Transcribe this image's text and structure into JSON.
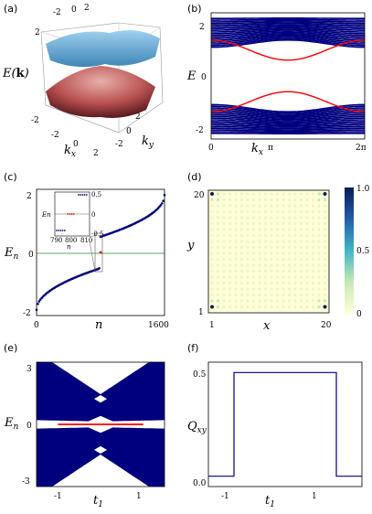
{
  "panels": {
    "a": {
      "label": "(a)",
      "zlabel": "E(k)",
      "xlabel": "kx",
      "ylabel": "ky",
      "xticks": [
        "-2",
        "0",
        "2"
      ],
      "yticks": [
        "-2",
        "0",
        "2"
      ],
      "zticks": [
        "2",
        "0",
        "-2"
      ]
    },
    "b": {
      "label": "(b)",
      "ylabel": "E",
      "xlabel": "kx",
      "xticks": [
        "0",
        "π",
        "2π"
      ],
      "yticks": [
        "2",
        "0",
        "-2"
      ]
    },
    "c": {
      "label": "(c)",
      "ylabel": "En",
      "xlabel": "n",
      "xticks": [
        "0",
        "1600"
      ],
      "yticks": [
        "2",
        "0",
        "-2"
      ],
      "inset": {
        "ylabel": "En",
        "xlabel": "n",
        "xticks": [
          "790",
          "800",
          "810"
        ],
        "yticks": [
          "0.5",
          "0",
          "-0.5"
        ]
      }
    },
    "d": {
      "label": "(d)",
      "ylabel": "y",
      "xlabel": "x",
      "xticks": [
        "1",
        "20"
      ],
      "yticks": [
        "20",
        "1"
      ],
      "colorbar_ticks": [
        "1.0",
        "0.5",
        "0"
      ]
    },
    "e": {
      "label": "(e)",
      "ylabel": "En",
      "xlabel": "t1",
      "xticks": [
        "-1",
        "1"
      ],
      "yticks": [
        "3",
        "0",
        "-3"
      ]
    },
    "f": {
      "label": "(f)",
      "ylabel": "Qxy",
      "xlabel": "t1",
      "xticks": [
        "-1",
        "1"
      ],
      "yticks": [
        "0.5",
        "0.0"
      ]
    }
  },
  "chart_data": [
    {
      "panel": "a",
      "type": "area",
      "description_free": true,
      "x_range": [
        -3.14,
        3.14
      ],
      "y_range": [
        -3.14,
        3.14
      ],
      "z_range": [
        -2,
        2
      ],
      "bands": [
        {
          "name": "upper",
          "color": "#5aa9d6"
        },
        {
          "name": "lower",
          "color": "#b85050"
        }
      ]
    },
    {
      "panel": "b",
      "type": "line",
      "x_range": [
        0,
        6.283
      ],
      "ylim": [
        -2.2,
        2.2
      ],
      "bulk_color": "#00007f",
      "edge_color": "#ff0000",
      "edge_upper_x": [
        0,
        1.57,
        3.14,
        4.71,
        6.28
      ],
      "edge_upper_y": [
        1.25,
        0.95,
        0.55,
        0.95,
        1.25
      ],
      "edge_lower_y": [
        -1.25,
        -0.95,
        -0.55,
        -0.95,
        -1.25
      ]
    },
    {
      "panel": "c",
      "type": "scatter",
      "x_range": [
        0,
        1600
      ],
      "ylim": [
        -2.2,
        2.2
      ],
      "color": "#00007f",
      "zero_line_color": "#2e8b2e",
      "n": [
        0,
        200,
        400,
        600,
        790,
        798,
        802,
        810,
        1000,
        1200,
        1400,
        1600
      ],
      "E": [
        -2.0,
        -1.6,
        -1.2,
        -0.75,
        -0.55,
        0.0,
        0.0,
        0.55,
        0.75,
        1.2,
        1.6,
        2.0
      ],
      "zero_modes": 4
    },
    {
      "panel": "d",
      "type": "heatmap",
      "grid": [
        20,
        20
      ],
      "clim": [
        0,
        1
      ],
      "colormap": [
        "#ffffd9",
        "#c7e9b4",
        "#41b6c4",
        "#225ea8",
        "#081d58"
      ],
      "corner_peaks": [
        [
          1,
          1
        ],
        [
          1,
          20
        ],
        [
          20,
          1
        ],
        [
          20,
          20
        ]
      ],
      "background_value": 0.05
    },
    {
      "panel": "e",
      "type": "area",
      "x_range": [
        -1.5,
        1.5
      ],
      "ylim": [
        -3.3,
        3.3
      ],
      "fill_color": "#00007f",
      "edge_color": "#ff0000",
      "t1": [
        -1.5,
        -1,
        -0.5,
        0,
        0.5,
        1,
        1.5
      ],
      "band_max": [
        3.0,
        2.2,
        1.3,
        0.5,
        1.3,
        2.2,
        3.0
      ],
      "band_min_gap": [
        0.1,
        0.05,
        0.05,
        0.5,
        0.05,
        0.05,
        0.1
      ],
      "zero_mode_t1_range": [
        -1,
        1
      ]
    },
    {
      "panel": "f",
      "type": "line",
      "x_range": [
        -1.5,
        1.5
      ],
      "ylim": [
        -0.05,
        0.55
      ],
      "color": "#00007f",
      "x": [
        -1.5,
        -1.0,
        -1.0,
        1.0,
        1.0,
        1.5
      ],
      "y": [
        0.0,
        0.0,
        0.5,
        0.5,
        0.0,
        0.0
      ]
    }
  ]
}
